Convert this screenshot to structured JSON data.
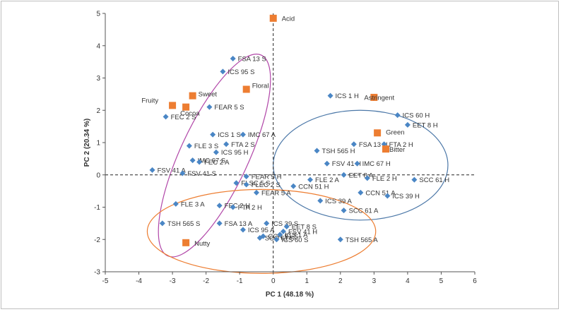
{
  "chart_data": {
    "type": "scatter",
    "xlabel": "PC 1 (48.18 %)",
    "ylabel": "PC 2 (20.34 %)",
    "xlim": [
      -5,
      6
    ],
    "ylim": [
      -3,
      5
    ],
    "xticks": [
      "-5",
      "-4",
      "-3",
      "-2",
      "-1",
      "0",
      "1",
      "2",
      "3",
      "4",
      "5",
      "6"
    ],
    "yticks": [
      "-3",
      "-2",
      "-1",
      "0",
      "1",
      "2",
      "3",
      "4",
      "5"
    ],
    "grid": false,
    "colors": {
      "samples": "#4a86c5",
      "attributes": "#ed7d31"
    },
    "series": [
      {
        "marker": "diamond",
        "points": [
          {
            "label": "FSA 13 S",
            "x": -1.2,
            "y": 3.6
          },
          {
            "label": "ICS 95 S",
            "x": -1.5,
            "y": 3.2
          },
          {
            "label": "FEAR 5 S",
            "x": -1.9,
            "y": 2.1
          },
          {
            "label": "FEC 2 S",
            "x": -3.2,
            "y": 1.8
          },
          {
            "label": "ICS 1 S",
            "x": -1.8,
            "y": 1.25
          },
          {
            "label": "IMC 67 A",
            "x": -0.9,
            "y": 1.25
          },
          {
            "label": "FLE 3 S",
            "x": -2.5,
            "y": 0.9
          },
          {
            "label": "FTA 2 S",
            "x": -1.4,
            "y": 0.95
          },
          {
            "label": "ICS 95 H",
            "x": -1.7,
            "y": 0.7
          },
          {
            "label": "IMC 67 S",
            "x": -2.4,
            "y": 0.45
          },
          {
            "label": "FEC 2 A",
            "x": -2.2,
            "y": 0.4
          },
          {
            "label": "FSV 41 A",
            "x": -3.6,
            "y": 0.15
          },
          {
            "label": "FSV 41 S",
            "x": -2.7,
            "y": 0.05
          },
          {
            "label": "FEAR 5 H",
            "x": -0.8,
            "y": -0.05
          },
          {
            "label": "FLSC 5 S",
            "x": -1.1,
            "y": -0.25
          },
          {
            "label": "FLEC 2 S",
            "x": -0.8,
            "y": -0.3
          },
          {
            "label": "FEAR 5 A",
            "x": -0.5,
            "y": -0.55
          },
          {
            "label": "FLE 3 A",
            "x": -2.9,
            "y": -0.9
          },
          {
            "label": "FEC 2 H",
            "x": -1.6,
            "y": -0.95
          },
          {
            "label": "FTA 2 H",
            "x": -1.2,
            "y": -1.0
          },
          {
            "label": "TSH 565 S",
            "x": -3.3,
            "y": -1.5
          },
          {
            "label": "FSA 13 A",
            "x": -1.6,
            "y": -1.5
          },
          {
            "label": "ICS 95 A",
            "x": -0.9,
            "y": -1.7
          },
          {
            "label": "ICS 39 S",
            "x": -0.2,
            "y": -1.5
          },
          {
            "label": "SCC 61 S",
            "x": -0.4,
            "y": -1.95
          },
          {
            "label": "EET 8 S",
            "x": 0.4,
            "y": -1.6
          },
          {
            "label": "FSV 41 H",
            "x": 0.3,
            "y": -1.75
          },
          {
            "label": "CCN 51 S",
            "x": -0.3,
            "y": -1.9
          },
          {
            "label": "ICS 1 A",
            "x": 0.2,
            "y": -1.85
          },
          {
            "label": "ICS 60 S",
            "x": 0.1,
            "y": -2.0
          },
          {
            "label": "CCN 51 H",
            "x": 0.6,
            "y": -0.35
          },
          {
            "label": "FLE 2 A",
            "x": 1.1,
            "y": -0.15
          },
          {
            "label": "ICS 1 H",
            "x": 1.7,
            "y": 2.45
          },
          {
            "label": "ICS 60 H",
            "x": 3.7,
            "y": 1.85
          },
          {
            "label": "EET 8 H",
            "x": 4.0,
            "y": 1.55
          },
          {
            "label": "FSA 13 H",
            "x": 2.4,
            "y": 0.95
          },
          {
            "label": "FTA 2 H",
            "x": 3.3,
            "y": 0.95
          },
          {
            "label": "TSH 565 H",
            "x": 1.3,
            "y": 0.75
          },
          {
            "label": "FSV 41 H",
            "x": 1.6,
            "y": 0.35
          },
          {
            "label": "IMC 67 H",
            "x": 2.5,
            "y": 0.35
          },
          {
            "label": "EET 8 A",
            "x": 2.1,
            "y": 0.0
          },
          {
            "label": "FLE 2 H",
            "x": 2.8,
            "y": -0.1
          },
          {
            "label": "SCC 61 H",
            "x": 4.2,
            "y": -0.15
          },
          {
            "label": "CCN 51 A",
            "x": 2.6,
            "y": -0.55
          },
          {
            "label": "ICS 39 H",
            "x": 3.4,
            "y": -0.65
          },
          {
            "label": "ICS 39 A",
            "x": 1.4,
            "y": -0.8
          },
          {
            "label": "SCC 61 A",
            "x": 2.1,
            "y": -1.1
          },
          {
            "label": "TSH 565 A",
            "x": 2.0,
            "y": -2.0
          }
        ]
      },
      {
        "marker": "square",
        "points": [
          {
            "label": "Acid",
            "x": 0.0,
            "y": 4.85
          },
          {
            "label": "Floral",
            "x": -0.8,
            "y": 2.65
          },
          {
            "label": "Sweet",
            "x": -2.4,
            "y": 2.45
          },
          {
            "label": "Fruity",
            "x": -3.0,
            "y": 2.15
          },
          {
            "label": "Cocoa",
            "x": -2.6,
            "y": 2.1
          },
          {
            "label": "Astringent",
            "x": 3.0,
            "y": 2.4
          },
          {
            "label": "Green",
            "x": 3.1,
            "y": 1.3
          },
          {
            "label": "Bitter",
            "x": 3.35,
            "y": 0.8
          },
          {
            "label": "Nutty",
            "x": -2.6,
            "y": -2.1
          }
        ]
      }
    ],
    "ellipses": [
      {
        "color": "#b146a8",
        "cx": -1.75,
        "cy": 0.6,
        "rx": 3.3,
        "ry": 1.05,
        "rotation_deg": 65
      },
      {
        "color": "#4c78a8",
        "cx": 2.6,
        "cy": 0.3,
        "rx": 2.6,
        "ry": 1.7,
        "rotation_deg": 0
      },
      {
        "color": "#ed7d31",
        "cx": -0.35,
        "cy": -1.75,
        "rx": 3.4,
        "ry": 1.3,
        "rotation_deg": 0
      }
    ]
  }
}
